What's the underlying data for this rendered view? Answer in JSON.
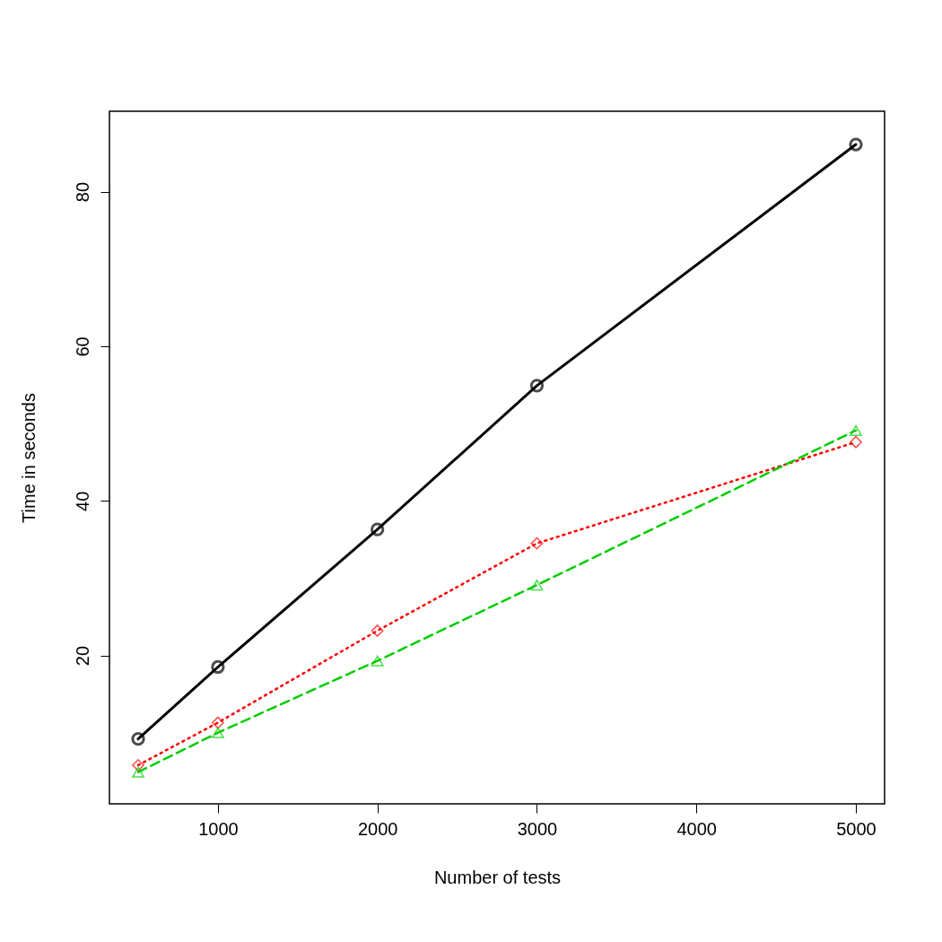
{
  "chart_data": {
    "type": "line",
    "xlabel": "Number of tests",
    "ylabel": "Time in seconds",
    "x": [
      500,
      1000,
      2000,
      3000,
      5000
    ],
    "series": [
      {
        "color": "#000000",
        "values": [
          9.2,
          18.5,
          36.3,
          54.9,
          86.1
        ],
        "marker": "circle",
        "line_style": "solid"
      },
      {
        "color": "#ff0000",
        "values": [
          5.8,
          11.3,
          23.2,
          34.5,
          47.6
        ],
        "marker": "diamond",
        "line_style": "dotted"
      },
      {
        "color": "#00cd00",
        "values": [
          4.9,
          10.0,
          19.3,
          29.1,
          49.1
        ],
        "marker": "triangle",
        "line_style": "dashed"
      }
    ],
    "xlim": [
      320,
      5180
    ],
    "ylim": [
      0.8,
      90.4
    ],
    "xticks": [
      1000,
      2000,
      3000,
      4000,
      5000
    ],
    "yticks": [
      20,
      40,
      60,
      80
    ],
    "grid": false
  }
}
